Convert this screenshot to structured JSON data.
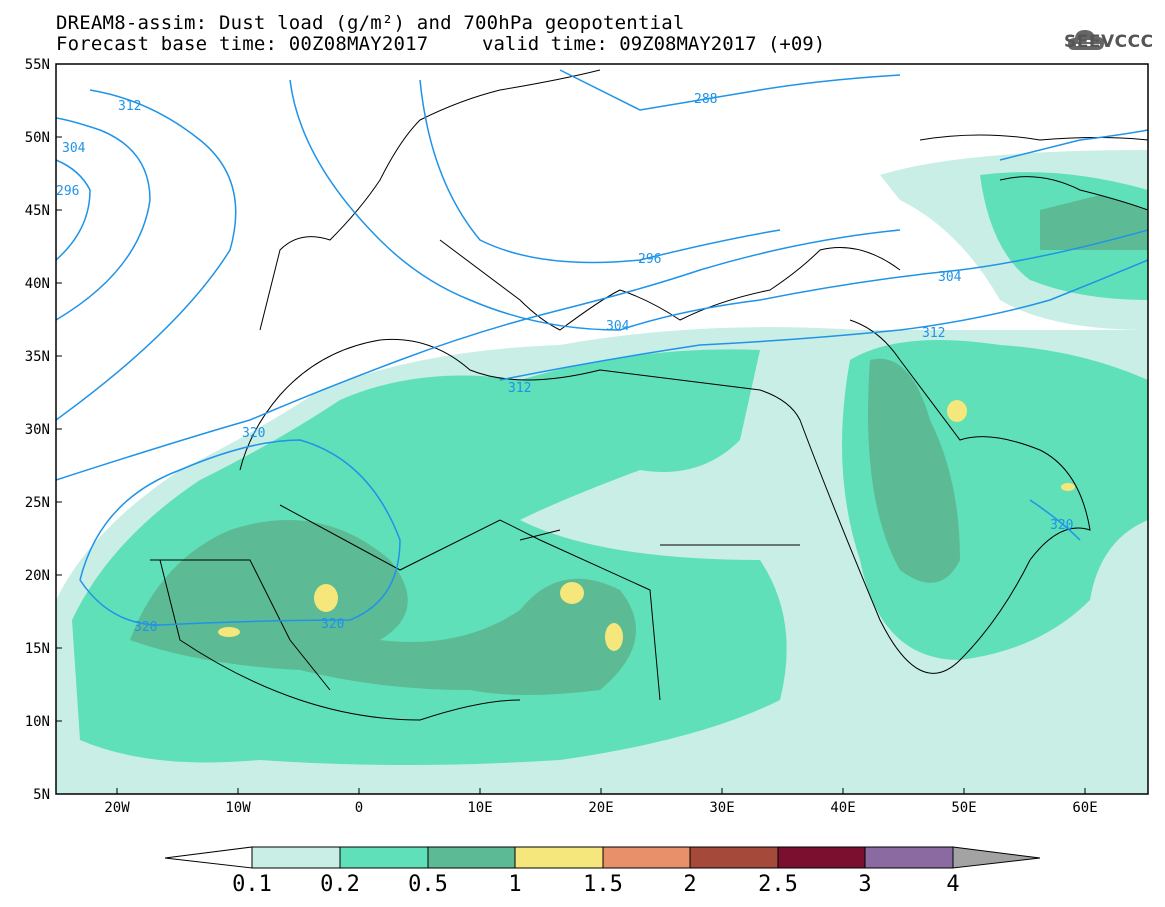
{
  "header": {
    "title_line1": "DREAM8-assim: Dust load (g/m²) and 700hPa geopotential",
    "title_line2_left": "Forecast base time: 00Z08MAY2017",
    "title_line2_right": "valid time: 09Z08MAY2017 (+09)",
    "logo_text": "SEEVCCC"
  },
  "map": {
    "lat_labels": [
      "55N",
      "50N",
      "45N",
      "40N",
      "35N",
      "30N",
      "25N",
      "20N",
      "15N",
      "10N",
      "5N"
    ],
    "lon_labels": [
      "20W",
      "10W",
      "0",
      "10E",
      "20E",
      "30E",
      "40E",
      "50E",
      "60E"
    ],
    "contour_labels": [
      "312",
      "304",
      "296",
      "288",
      "296",
      "304",
      "312",
      "320",
      "304",
      "312",
      "320",
      "320",
      "320"
    ]
  },
  "colorbar": {
    "ticks": [
      "0.1",
      "0.2",
      "0.5",
      "1",
      "1.5",
      "2",
      "2.5",
      "3",
      "4"
    ],
    "colors": [
      "#c8eee6",
      "#5fe0b8",
      "#5cbb95",
      "#f5e77b",
      "#e8906a",
      "#a5493a",
      "#7a0f2f",
      "#8a6aa0"
    ],
    "over_color": "#a3a3a3",
    "under_color": "#ffffff"
  },
  "colors": {
    "dust_light": "#c8eee6",
    "dust_mid": "#5fe0b8",
    "dust_dark": "#5cbb95",
    "dust_yellow": "#f5e77b",
    "contour": "#1f93e8"
  }
}
